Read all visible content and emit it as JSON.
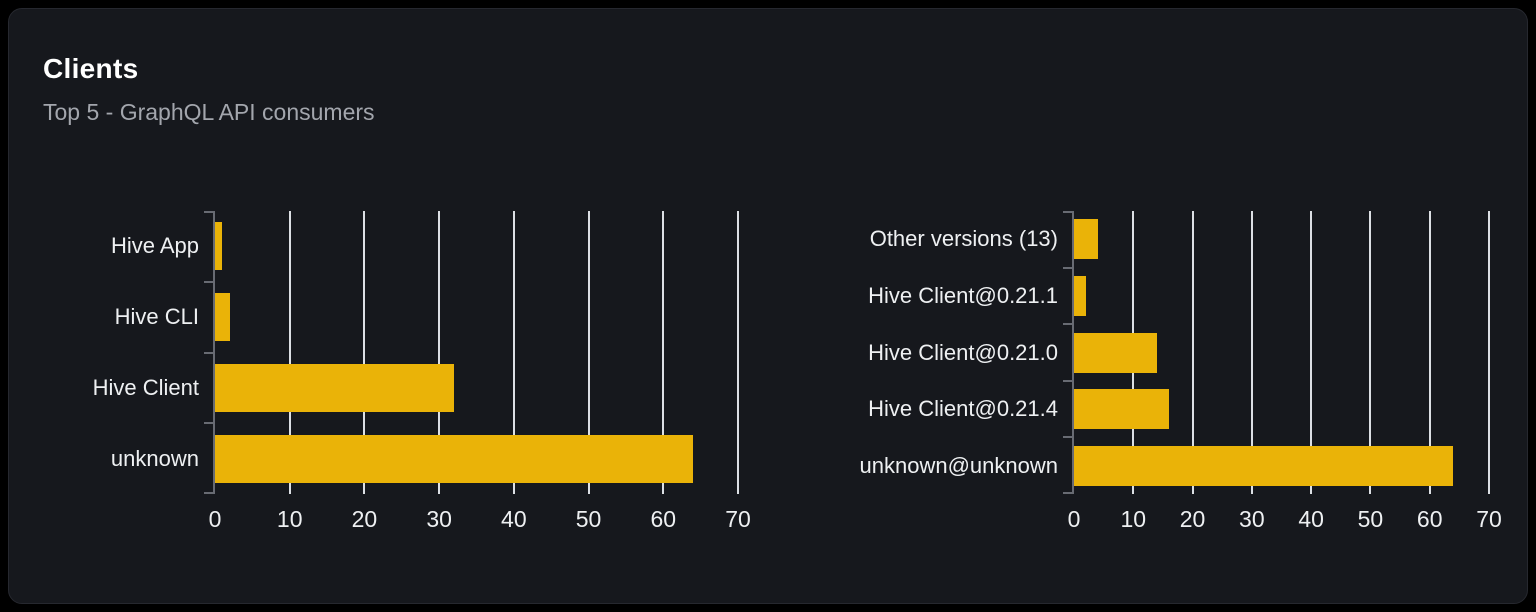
{
  "header": {
    "title": "Clients",
    "subtitle": "Top 5 - GraphQL API consumers"
  },
  "colors": {
    "page_bg": "#000000",
    "card_bg": "#16181d",
    "card_border": "#26282f",
    "title": "#ffffff",
    "subtitle": "#a3a6ad",
    "axis": "#686b73",
    "gridline": "#dcdfe4",
    "label": "#eef0f2",
    "bar": "#eab308"
  },
  "chart_data": [
    {
      "type": "bar",
      "orientation": "horizontal",
      "name": "clients",
      "categories": [
        "Hive App",
        "Hive CLI",
        "Hive Client",
        "unknown"
      ],
      "values": [
        1,
        2,
        32,
        64
      ],
      "xlim": [
        0,
        70
      ],
      "xticks": [
        0,
        10,
        20,
        30,
        40,
        50,
        60,
        70
      ],
      "grid": true,
      "legend": false
    },
    {
      "type": "bar",
      "orientation": "horizontal",
      "name": "client-versions",
      "categories": [
        "Other versions (13)",
        "Hive Client@0.21.1",
        "Hive Client@0.21.0",
        "Hive Client@0.21.4",
        "unknown@unknown"
      ],
      "values": [
        4,
        2,
        14,
        16,
        64
      ],
      "xlim": [
        0,
        70
      ],
      "xticks": [
        0,
        10,
        20,
        30,
        40,
        50,
        60,
        70
      ],
      "grid": true,
      "legend": false
    }
  ]
}
